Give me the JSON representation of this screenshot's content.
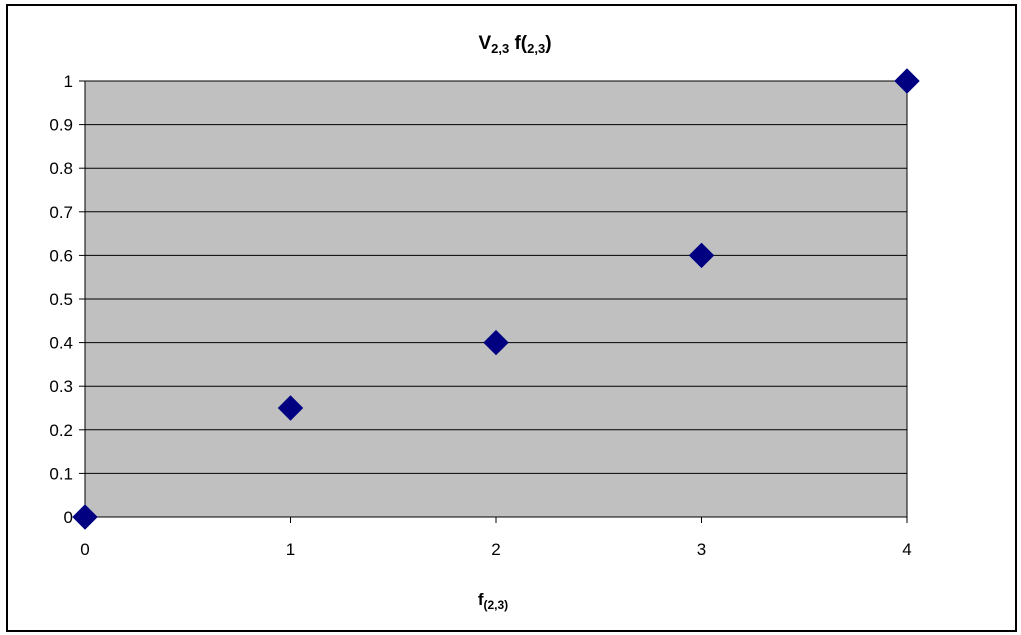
{
  "chart_data": {
    "type": "scatter",
    "title": {
      "main": "V",
      "sub1": "2,3",
      "mid": " f(",
      "sub2": "2,3",
      "end": ")"
    },
    "xlabel": {
      "main": "f",
      "sub": "(2,3)"
    },
    "ylabel": "",
    "x": [
      0,
      1,
      2,
      3,
      4
    ],
    "y": [
      0,
      0.25,
      0.4,
      0.6,
      1
    ],
    "xlim": [
      0,
      4
    ],
    "ylim": [
      0,
      1
    ],
    "xticks": [
      "0",
      "1",
      "2",
      "3",
      "4"
    ],
    "yticks": [
      "0",
      "0.1",
      "0.2",
      "0.3",
      "0.4",
      "0.5",
      "0.6",
      "0.7",
      "0.8",
      "0.9",
      "1"
    ],
    "grid": "horizontal",
    "legend": "none",
    "colors": {
      "plot_area": "#c0c0c0",
      "marker": "#000080",
      "gridline": "#000000"
    },
    "marker": "diamond"
  }
}
